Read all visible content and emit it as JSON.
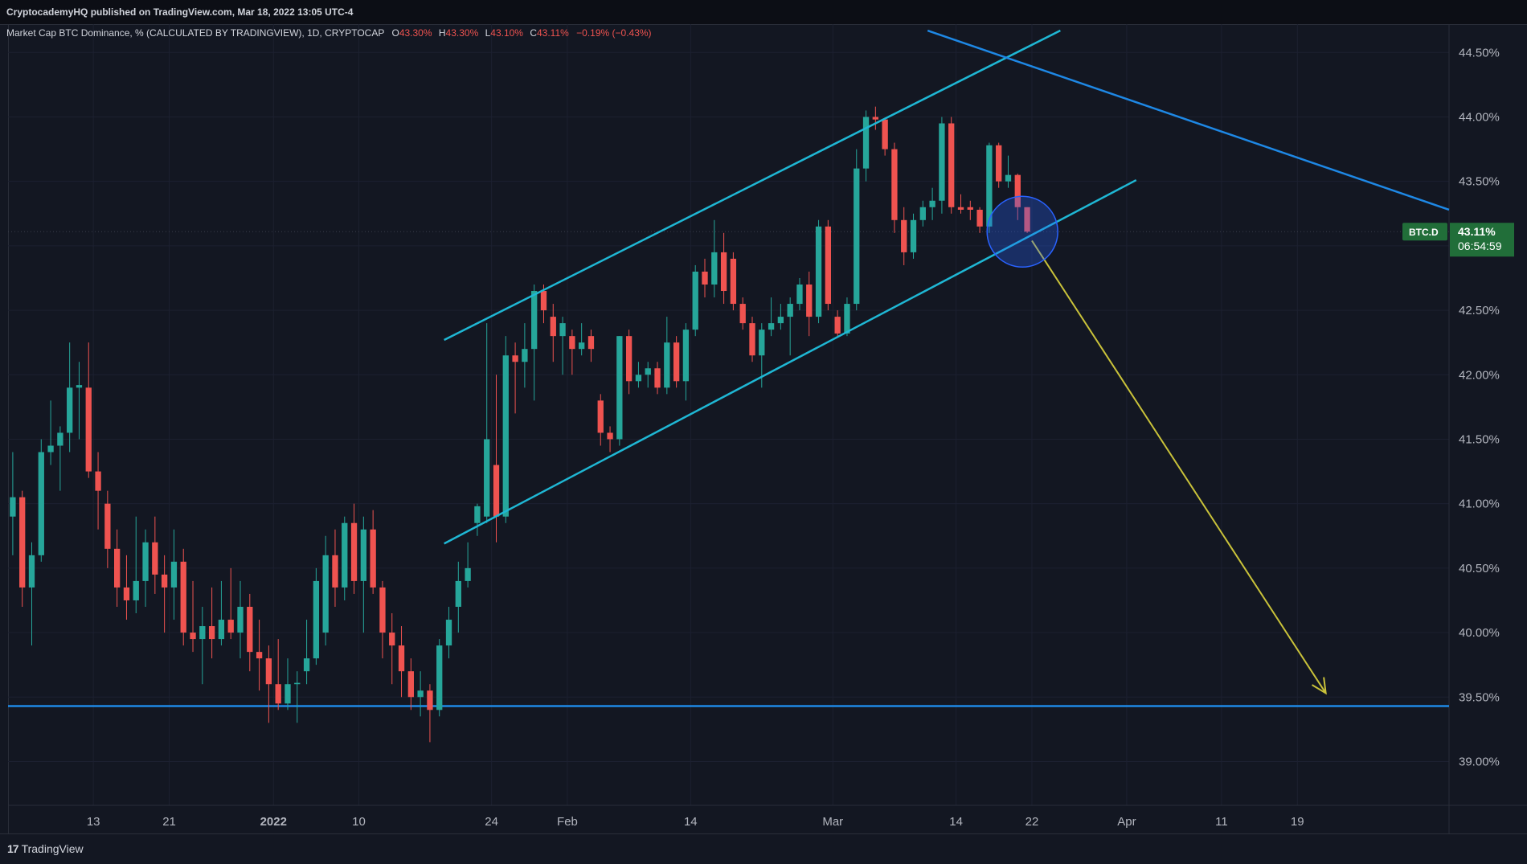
{
  "header": {
    "publisher_line": "CryptocademyHQ published on TradingView.com, Mar 18, 2022 13:05 UTC-4"
  },
  "legend": {
    "title": "Market Cap BTC Dominance, % (CALCULATED BY TRADINGVIEW), 1D, CRYPTOCAP",
    "open_label": "O",
    "open_value": "43.30%",
    "high_label": "H",
    "high_value": "43.30%",
    "low_label": "L",
    "low_value": "43.10%",
    "close_label": "C",
    "close_value": "43.11%",
    "change": "−0.19% (−0.43%)"
  },
  "price_badge": {
    "symbol": "BTC.D",
    "price": "43.11%",
    "countdown": "06:54:59"
  },
  "footer": {
    "brand": "TradingView",
    "logo_mark": "17"
  },
  "colors": {
    "background": "#131722",
    "up": "#26a69a",
    "down": "#ef5350",
    "channel": "#1fb7d4",
    "trendline": "#1e88e5",
    "arrow": "#c9c23a",
    "badge": "#216e39",
    "circle": "#2962ff"
  },
  "chart_data": {
    "type": "candlestick",
    "ylim": [
      38.66,
      44.72
    ],
    "yticks": [
      39.0,
      39.5,
      40.0,
      40.5,
      41.0,
      41.5,
      42.0,
      42.5,
      43.0,
      43.5,
      44.0,
      44.5
    ],
    "ytick_labels": [
      "39.00%",
      "39.50%",
      "40.00%",
      "40.50%",
      "41.00%",
      "41.50%",
      "42.00%",
      "42.50%",
      "43.00%",
      "43.50%",
      "44.00%",
      "44.50%"
    ],
    "xlim": [
      "2021-12-04",
      "2022-05-05"
    ],
    "xtick_labels": [
      {
        "date": "2021-12-13",
        "label": "13"
      },
      {
        "date": "2021-12-21",
        "label": "21"
      },
      {
        "date": "2022-01-01",
        "label": "2022"
      },
      {
        "date": "2022-01-10",
        "label": "10"
      },
      {
        "date": "2022-01-24",
        "label": "24"
      },
      {
        "date": "2022-02-01",
        "label": "Feb"
      },
      {
        "date": "2022-02-14",
        "label": "14"
      },
      {
        "date": "2022-03-01",
        "label": "Mar"
      },
      {
        "date": "2022-03-14",
        "label": "14"
      },
      {
        "date": "2022-03-22",
        "label": "22"
      },
      {
        "date": "2022-04-01",
        "label": "Apr"
      },
      {
        "date": "2022-04-11",
        "label": "11"
      },
      {
        "date": "2022-04-19",
        "label": "19"
      }
    ],
    "candles": [
      {
        "date": "2021-12-04",
        "o": 40.9,
        "h": 41.4,
        "l": 40.6,
        "c": 41.05
      },
      {
        "date": "2021-12-05",
        "o": 41.05,
        "h": 41.1,
        "l": 40.2,
        "c": 40.35
      },
      {
        "date": "2021-12-06",
        "o": 40.35,
        "h": 40.7,
        "l": 39.9,
        "c": 40.6
      },
      {
        "date": "2021-12-07",
        "o": 40.6,
        "h": 41.5,
        "l": 40.55,
        "c": 41.4
      },
      {
        "date": "2021-12-08",
        "o": 41.4,
        "h": 41.8,
        "l": 41.3,
        "c": 41.45
      },
      {
        "date": "2021-12-09",
        "o": 41.45,
        "h": 41.6,
        "l": 41.1,
        "c": 41.55
      },
      {
        "date": "2021-12-10",
        "o": 41.55,
        "h": 42.25,
        "l": 41.4,
        "c": 41.9
      },
      {
        "date": "2021-12-11",
        "o": 41.9,
        "h": 42.1,
        "l": 41.5,
        "c": 41.92
      },
      {
        "date": "2021-12-12",
        "o": 41.9,
        "h": 42.25,
        "l": 41.2,
        "c": 41.25
      },
      {
        "date": "2021-12-13",
        "o": 41.25,
        "h": 41.4,
        "l": 40.8,
        "c": 41.1
      },
      {
        "date": "2021-12-14",
        "o": 41.0,
        "h": 41.1,
        "l": 40.5,
        "c": 40.65
      },
      {
        "date": "2021-12-15",
        "o": 40.65,
        "h": 40.8,
        "l": 40.2,
        "c": 40.35
      },
      {
        "date": "2021-12-16",
        "o": 40.35,
        "h": 40.6,
        "l": 40.1,
        "c": 40.25
      },
      {
        "date": "2021-12-17",
        "o": 40.25,
        "h": 40.9,
        "l": 40.15,
        "c": 40.4
      },
      {
        "date": "2021-12-18",
        "o": 40.4,
        "h": 40.8,
        "l": 40.2,
        "c": 40.7
      },
      {
        "date": "2021-12-19",
        "o": 40.7,
        "h": 40.9,
        "l": 40.3,
        "c": 40.45
      },
      {
        "date": "2021-12-20",
        "o": 40.45,
        "h": 40.6,
        "l": 40.0,
        "c": 40.35
      },
      {
        "date": "2021-12-21",
        "o": 40.35,
        "h": 40.8,
        "l": 40.1,
        "c": 40.55
      },
      {
        "date": "2021-12-22",
        "o": 40.55,
        "h": 40.65,
        "l": 39.9,
        "c": 40.0
      },
      {
        "date": "2021-12-23",
        "o": 40.0,
        "h": 40.4,
        "l": 39.85,
        "c": 39.95
      },
      {
        "date": "2021-12-24",
        "o": 39.95,
        "h": 40.2,
        "l": 39.6,
        "c": 40.05
      },
      {
        "date": "2021-12-25",
        "o": 40.05,
        "h": 40.35,
        "l": 39.8,
        "c": 39.95
      },
      {
        "date": "2021-12-26",
        "o": 39.95,
        "h": 40.4,
        "l": 39.9,
        "c": 40.1
      },
      {
        "date": "2021-12-27",
        "o": 40.1,
        "h": 40.5,
        "l": 39.95,
        "c": 40.0
      },
      {
        "date": "2021-12-28",
        "o": 40.0,
        "h": 40.4,
        "l": 39.8,
        "c": 40.2
      },
      {
        "date": "2021-12-29",
        "o": 40.2,
        "h": 40.3,
        "l": 39.7,
        "c": 39.85
      },
      {
        "date": "2021-12-30",
        "o": 39.85,
        "h": 40.1,
        "l": 39.55,
        "c": 39.8
      },
      {
        "date": "2021-12-31",
        "o": 39.8,
        "h": 39.9,
        "l": 39.3,
        "c": 39.6
      },
      {
        "date": "2022-01-01",
        "o": 39.6,
        "h": 39.95,
        "l": 39.4,
        "c": 39.45
      },
      {
        "date": "2022-01-02",
        "o": 39.45,
        "h": 39.8,
        "l": 39.4,
        "c": 39.6
      },
      {
        "date": "2022-01-03",
        "o": 39.6,
        "h": 39.7,
        "l": 39.3,
        "c": 39.61
      },
      {
        "date": "2022-01-04",
        "o": 39.7,
        "h": 40.1,
        "l": 39.6,
        "c": 39.8
      },
      {
        "date": "2022-01-05",
        "o": 39.8,
        "h": 40.5,
        "l": 39.75,
        "c": 40.4
      },
      {
        "date": "2022-01-06",
        "o": 40.0,
        "h": 40.75,
        "l": 39.9,
        "c": 40.6
      },
      {
        "date": "2022-01-07",
        "o": 40.6,
        "h": 40.8,
        "l": 40.2,
        "c": 40.35
      },
      {
        "date": "2022-01-08",
        "o": 40.35,
        "h": 40.9,
        "l": 40.25,
        "c": 40.85
      },
      {
        "date": "2022-01-09",
        "o": 40.85,
        "h": 41.0,
        "l": 40.3,
        "c": 40.4
      },
      {
        "date": "2022-01-10",
        "o": 40.4,
        "h": 40.9,
        "l": 40.0,
        "c": 40.8
      },
      {
        "date": "2022-01-11",
        "o": 40.8,
        "h": 40.95,
        "l": 40.3,
        "c": 40.35
      },
      {
        "date": "2022-01-12",
        "o": 40.35,
        "h": 40.4,
        "l": 39.8,
        "c": 40.0
      },
      {
        "date": "2022-01-13",
        "o": 40.0,
        "h": 40.15,
        "l": 39.6,
        "c": 39.9
      },
      {
        "date": "2022-01-14",
        "o": 39.9,
        "h": 40.05,
        "l": 39.5,
        "c": 39.7
      },
      {
        "date": "2022-01-15",
        "o": 39.7,
        "h": 39.8,
        "l": 39.4,
        "c": 39.5
      },
      {
        "date": "2022-01-16",
        "o": 39.5,
        "h": 39.7,
        "l": 39.35,
        "c": 39.55
      },
      {
        "date": "2022-01-17",
        "o": 39.55,
        "h": 39.6,
        "l": 39.15,
        "c": 39.4
      },
      {
        "date": "2022-01-18",
        "o": 39.4,
        "h": 39.95,
        "l": 39.35,
        "c": 39.9
      },
      {
        "date": "2022-01-19",
        "o": 39.9,
        "h": 40.2,
        "l": 39.8,
        "c": 40.1
      },
      {
        "date": "2022-01-20",
        "o": 40.2,
        "h": 40.55,
        "l": 40.0,
        "c": 40.4
      },
      {
        "date": "2022-01-21",
        "o": 40.4,
        "h": 40.7,
        "l": 40.35,
        "c": 40.5
      },
      {
        "date": "2022-01-22",
        "o": 40.85,
        "h": 41.0,
        "l": 40.75,
        "c": 40.98
      },
      {
        "date": "2022-01-23",
        "o": 40.9,
        "h": 42.4,
        "l": 40.85,
        "c": 41.5
      },
      {
        "date": "2022-01-24",
        "o": 41.3,
        "h": 42.0,
        "l": 40.7,
        "c": 40.9
      },
      {
        "date": "2022-01-25",
        "o": 40.9,
        "h": 42.3,
        "l": 40.85,
        "c": 42.15
      },
      {
        "date": "2022-01-26",
        "o": 42.15,
        "h": 42.25,
        "l": 41.7,
        "c": 42.1
      },
      {
        "date": "2022-01-27",
        "o": 42.1,
        "h": 42.4,
        "l": 41.9,
        "c": 42.2
      },
      {
        "date": "2022-01-28",
        "o": 42.2,
        "h": 42.7,
        "l": 41.8,
        "c": 42.65
      },
      {
        "date": "2022-01-29",
        "o": 42.65,
        "h": 42.7,
        "l": 42.4,
        "c": 42.5
      },
      {
        "date": "2022-01-30",
        "o": 42.45,
        "h": 42.55,
        "l": 42.1,
        "c": 42.3
      },
      {
        "date": "2022-01-31",
        "o": 42.3,
        "h": 42.45,
        "l": 42.0,
        "c": 42.4
      },
      {
        "date": "2022-02-01",
        "o": 42.3,
        "h": 42.35,
        "l": 42.0,
        "c": 42.2
      },
      {
        "date": "2022-02-02",
        "o": 42.2,
        "h": 42.4,
        "l": 42.15,
        "c": 42.25
      },
      {
        "date": "2022-02-03",
        "o": 42.3,
        "h": 42.35,
        "l": 42.1,
        "c": 42.2
      },
      {
        "date": "2022-02-04",
        "o": 41.8,
        "h": 41.85,
        "l": 41.45,
        "c": 41.55
      },
      {
        "date": "2022-02-05",
        "o": 41.55,
        "h": 41.6,
        "l": 41.4,
        "c": 41.5
      },
      {
        "date": "2022-02-06",
        "o": 41.5,
        "h": 42.3,
        "l": 41.45,
        "c": 42.3
      },
      {
        "date": "2022-02-07",
        "o": 42.3,
        "h": 42.35,
        "l": 41.85,
        "c": 41.95
      },
      {
        "date": "2022-02-08",
        "o": 41.95,
        "h": 42.1,
        "l": 41.9,
        "c": 42.0
      },
      {
        "date": "2022-02-09",
        "o": 42.0,
        "h": 42.1,
        "l": 41.9,
        "c": 42.05
      },
      {
        "date": "2022-02-10",
        "o": 42.05,
        "h": 42.1,
        "l": 41.85,
        "c": 41.9
      },
      {
        "date": "2022-02-11",
        "o": 41.9,
        "h": 42.45,
        "l": 41.85,
        "c": 42.25
      },
      {
        "date": "2022-02-12",
        "o": 42.25,
        "h": 42.3,
        "l": 41.9,
        "c": 41.95
      },
      {
        "date": "2022-02-13",
        "o": 41.95,
        "h": 42.4,
        "l": 41.8,
        "c": 42.35
      },
      {
        "date": "2022-02-14",
        "o": 42.35,
        "h": 42.85,
        "l": 42.3,
        "c": 42.8
      },
      {
        "date": "2022-02-15",
        "o": 42.8,
        "h": 42.9,
        "l": 42.6,
        "c": 42.7
      },
      {
        "date": "2022-02-16",
        "o": 42.7,
        "h": 43.2,
        "l": 42.6,
        "c": 42.95
      },
      {
        "date": "2022-02-17",
        "o": 42.95,
        "h": 43.1,
        "l": 42.55,
        "c": 42.65
      },
      {
        "date": "2022-02-18",
        "o": 42.9,
        "h": 42.95,
        "l": 42.5,
        "c": 42.55
      },
      {
        "date": "2022-02-19",
        "o": 42.55,
        "h": 42.6,
        "l": 42.35,
        "c": 42.4
      },
      {
        "date": "2022-02-20",
        "o": 42.4,
        "h": 42.45,
        "l": 42.1,
        "c": 42.15
      },
      {
        "date": "2022-02-21",
        "o": 42.15,
        "h": 42.4,
        "l": 41.9,
        "c": 42.35
      },
      {
        "date": "2022-02-22",
        "o": 42.35,
        "h": 42.6,
        "l": 42.3,
        "c": 42.4
      },
      {
        "date": "2022-02-23",
        "o": 42.4,
        "h": 42.55,
        "l": 42.35,
        "c": 42.45
      },
      {
        "date": "2022-02-24",
        "o": 42.45,
        "h": 42.6,
        "l": 42.15,
        "c": 42.55
      },
      {
        "date": "2022-02-25",
        "o": 42.55,
        "h": 42.75,
        "l": 42.5,
        "c": 42.7
      },
      {
        "date": "2022-02-26",
        "o": 42.7,
        "h": 42.8,
        "l": 42.3,
        "c": 42.45
      },
      {
        "date": "2022-02-27",
        "o": 42.45,
        "h": 43.2,
        "l": 42.4,
        "c": 43.15
      },
      {
        "date": "2022-02-28",
        "o": 43.15,
        "h": 43.2,
        "l": 42.5,
        "c": 42.55
      },
      {
        "date": "2022-03-01",
        "o": 42.45,
        "h": 42.5,
        "l": 42.3,
        "c": 42.32
      },
      {
        "date": "2022-03-02",
        "o": 42.32,
        "h": 42.6,
        "l": 42.3,
        "c": 42.55
      },
      {
        "date": "2022-03-03",
        "o": 42.55,
        "h": 43.75,
        "l": 42.5,
        "c": 43.6
      },
      {
        "date": "2022-03-04",
        "o": 43.6,
        "h": 44.05,
        "l": 43.5,
        "c": 44.0
      },
      {
        "date": "2022-03-05",
        "o": 44.0,
        "h": 44.08,
        "l": 43.9,
        "c": 43.98
      },
      {
        "date": "2022-03-06",
        "o": 43.98,
        "h": 43.99,
        "l": 43.7,
        "c": 43.75
      },
      {
        "date": "2022-03-07",
        "o": 43.75,
        "h": 43.8,
        "l": 43.1,
        "c": 43.2
      },
      {
        "date": "2022-03-08",
        "o": 43.2,
        "h": 43.3,
        "l": 42.85,
        "c": 42.95
      },
      {
        "date": "2022-03-09",
        "o": 42.95,
        "h": 43.25,
        "l": 42.9,
        "c": 43.2
      },
      {
        "date": "2022-03-10",
        "o": 43.2,
        "h": 43.35,
        "l": 43.15,
        "c": 43.3
      },
      {
        "date": "2022-03-11",
        "o": 43.3,
        "h": 43.45,
        "l": 43.2,
        "c": 43.35
      },
      {
        "date": "2022-03-12",
        "o": 43.35,
        "h": 44.0,
        "l": 43.25,
        "c": 43.95
      },
      {
        "date": "2022-03-13",
        "o": 43.95,
        "h": 44.0,
        "l": 43.25,
        "c": 43.3
      },
      {
        "date": "2022-03-14",
        "o": 43.3,
        "h": 43.4,
        "l": 43.25,
        "c": 43.28
      },
      {
        "date": "2022-03-15",
        "o": 43.3,
        "h": 43.35,
        "l": 43.2,
        "c": 43.28
      },
      {
        "date": "2022-03-16",
        "o": 43.28,
        "h": 43.3,
        "l": 43.1,
        "c": 43.15
      },
      {
        "date": "2022-03-17",
        "o": 43.15,
        "h": 43.8,
        "l": 43.1,
        "c": 43.78
      },
      {
        "date": "2022-03-18",
        "o": 43.78,
        "h": 43.8,
        "l": 43.45,
        "c": 43.5
      },
      {
        "date": "2022-03-19",
        "o": 43.5,
        "h": 43.7,
        "l": 43.45,
        "c": 43.55
      },
      {
        "date": "2022-03-20",
        "o": 43.55,
        "h": 43.56,
        "l": 43.2,
        "c": 43.3
      },
      {
        "date": "2022-03-21",
        "o": 43.3,
        "h": 43.3,
        "l": 43.1,
        "c": 43.11
      }
    ],
    "lines": [
      {
        "name": "channel-upper",
        "from": {
          "date": "2022-01-19",
          "value": 42.27
        },
        "to": {
          "date": "2022-03-25",
          "value": 44.67
        }
      },
      {
        "name": "channel-lower",
        "from": {
          "date": "2022-01-19",
          "value": 40.69
        },
        "to": {
          "date": "2022-04-02",
          "value": 43.51
        }
      },
      {
        "name": "descending-trendline",
        "from": {
          "date": "2022-03-11",
          "value": 44.67
        },
        "to": {
          "date": "2022-05-05",
          "value": 43.28
        }
      },
      {
        "name": "support-line",
        "from": {
          "date": "2021-12-04",
          "value": 39.43
        },
        "to": {
          "date": "2022-05-05",
          "value": 39.43
        }
      }
    ],
    "arrow": {
      "from": {
        "date": "2022-03-22",
        "value": 43.04
      },
      "to": {
        "date": "2022-04-22",
        "value": 39.53
      }
    },
    "circle": {
      "center": {
        "date": "2022-03-21",
        "value": 43.11
      }
    },
    "last_price": 43.11
  }
}
